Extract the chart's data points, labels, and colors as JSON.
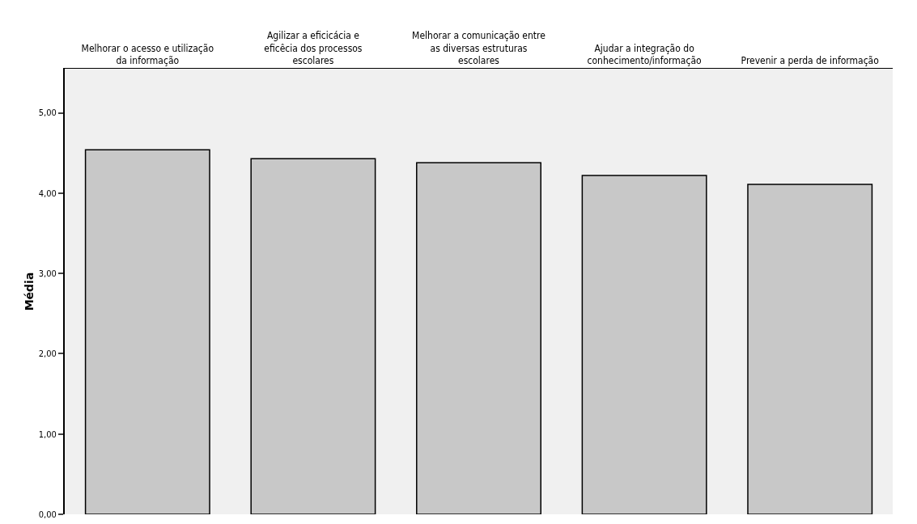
{
  "chart_data": {
    "type": "bar",
    "ylabel": "Média",
    "categories": [
      "Melhorar o acesso e utilização da informação",
      "Agilizar a eficicácia e eficêcia dos processos escolares",
      "Melhorar a comunicação entre as diversas estruturas escolares",
      "Ajudar a integração do conhecimento/informação",
      "Prevenir a perda de informação"
    ],
    "values": [
      4.54,
      4.43,
      4.38,
      4.22,
      4.11
    ],
    "color": "#c8c8c8",
    "ylim": [
      0,
      5.55
    ],
    "yticks": [
      {
        "value": 0,
        "label": "0,00"
      },
      {
        "value": 1,
        "label": "1,00"
      },
      {
        "value": 2,
        "label": "2,00"
      },
      {
        "value": 3,
        "label": "3,00"
      },
      {
        "value": 4,
        "label": "4,00"
      },
      {
        "value": 5,
        "label": "5,00"
      }
    ],
    "grid": false
  }
}
